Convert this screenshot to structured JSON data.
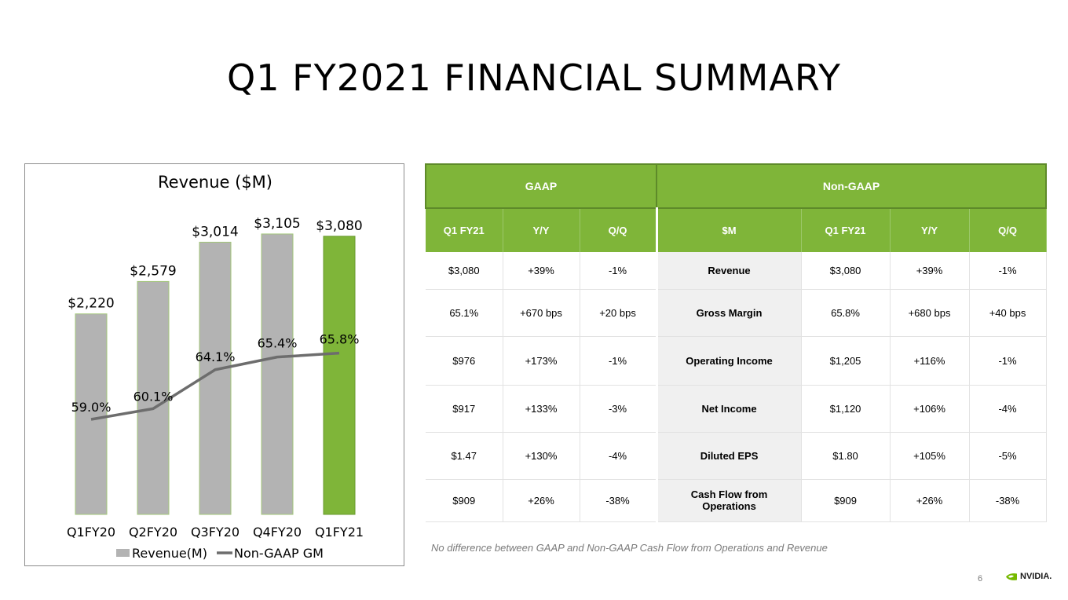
{
  "slide": {
    "title": "Q1 FY2021 FINANCIAL SUMMARY",
    "footnote": "No difference between GAAP and Non-GAAP Cash Flow from Operations and Revenue",
    "page_number": "6",
    "logo_text": "NVIDIA."
  },
  "colors": {
    "accent_green": "#7fb539",
    "bar_gray": "#b3b3b3",
    "line_gray": "#6d6d6d"
  },
  "chart_data": {
    "type": "bar",
    "title": "Revenue ($M)",
    "categories": [
      "Q1FY20",
      "Q2FY20",
      "Q3FY20",
      "Q4FY20",
      "Q1FY21"
    ],
    "series": [
      {
        "name": "Revenue(M)",
        "type": "bar",
        "values": [
          2220,
          2579,
          3014,
          3105,
          3080
        ],
        "labels": [
          "$2,220",
          "$2,579",
          "$3,014",
          "$3,105",
          "$3,080"
        ],
        "highlight_index": 4
      },
      {
        "name": "Non-GAAP GM",
        "type": "line",
        "values": [
          59.0,
          60.1,
          64.1,
          65.4,
          65.8
        ],
        "labels": [
          "59.0%",
          "60.1%",
          "64.1%",
          "65.4%",
          "65.8%"
        ]
      }
    ],
    "legend_position": "bottom",
    "grid": false
  },
  "table": {
    "groups": [
      "GAAP",
      "Non-GAAP"
    ],
    "gaap_headers": [
      "Q1 FY21",
      "Y/Y",
      "Q/Q"
    ],
    "nongaap_headers": [
      "$M",
      "Q1 FY21",
      "Y/Y",
      "Q/Q"
    ],
    "rows": [
      {
        "gaap": [
          "$3,080",
          "+39%",
          "-1%"
        ],
        "metric": "Revenue",
        "nongaap": [
          "$3,080",
          "+39%",
          "-1%"
        ]
      },
      {
        "gaap": [
          "65.1%",
          "+670 bps",
          "+20 bps"
        ],
        "metric": "Gross Margin",
        "nongaap": [
          "65.8%",
          "+680 bps",
          "+40 bps"
        ]
      },
      {
        "gaap": [
          "$976",
          "+173%",
          "-1%"
        ],
        "metric": "Operating Income",
        "nongaap": [
          "$1,205",
          "+116%",
          "-1%"
        ]
      },
      {
        "gaap": [
          "$917",
          "+133%",
          "-3%"
        ],
        "metric": "Net Income",
        "nongaap": [
          "$1,120",
          "+106%",
          "-4%"
        ]
      },
      {
        "gaap": [
          "$1.47",
          "+130%",
          "-4%"
        ],
        "metric": "Diluted EPS",
        "nongaap": [
          "$1.80",
          "+105%",
          "-5%"
        ]
      },
      {
        "gaap": [
          "$909",
          "+26%",
          "-38%"
        ],
        "metric": "Cash Flow from Operations",
        "nongaap": [
          "$909",
          "+26%",
          "-38%"
        ]
      }
    ]
  }
}
